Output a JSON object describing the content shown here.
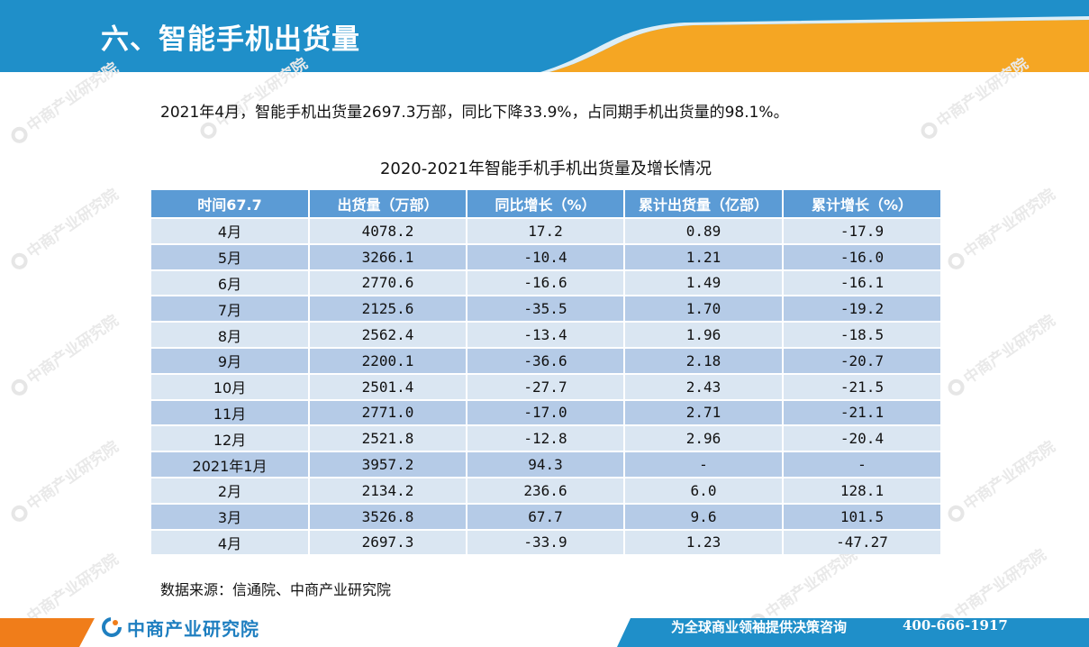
{
  "header": {
    "title": "六、智能手机出货量"
  },
  "summary": "2021年4月，智能手机出货量2697.3万部，同比下降33.9%，占同期手机出货量的98.1%。",
  "table": {
    "title": "2020-2021年智能手机手机出货量及增长情况",
    "headers": [
      "时间67.7",
      "出货量（万部）",
      "同比增长（%）",
      "累计出货量（亿部）",
      "累计增长（%）"
    ],
    "rows": [
      [
        "4月",
        "4078.2",
        "17.2",
        "0.89",
        "-17.9"
      ],
      [
        "5月",
        "3266.1",
        "-10.4",
        "1.21",
        "-16.0"
      ],
      [
        "6月",
        "2770.6",
        "-16.6",
        "1.49",
        "-16.1"
      ],
      [
        "7月",
        "2125.6",
        "-35.5",
        "1.70",
        "-19.2"
      ],
      [
        "8月",
        "2562.4",
        "-13.4",
        "1.96",
        "-18.5"
      ],
      [
        "9月",
        "2200.1",
        "-36.6",
        "2.18",
        "-20.7"
      ],
      [
        "10月",
        "2501.4",
        "-27.7",
        "2.43",
        "-21.5"
      ],
      [
        "11月",
        "2771.0",
        "-17.0",
        "2.71",
        "-21.1"
      ],
      [
        "12月",
        "2521.8",
        "-12.8",
        "2.96",
        "-20.4"
      ],
      [
        "2021年1月",
        "3957.2",
        "94.3",
        "-",
        "-"
      ],
      [
        "2月",
        "2134.2",
        "236.6",
        "6.0",
        "128.1"
      ],
      [
        "3月",
        "3526.8",
        "67.7",
        "9.6",
        "101.5"
      ],
      [
        "4月",
        "2697.3",
        "-33.9",
        "1.23",
        "-47.27"
      ]
    ]
  },
  "source": "数据来源：信通院、中商产业研究院",
  "footer": {
    "logo_text": "中商产业研究院",
    "slogan": "为全球商业领袖提供决策咨询",
    "phone": "400-666-1917"
  },
  "watermark": {
    "text": "中商产业研究院"
  },
  "colors": {
    "header_blue": "#1f8fc9",
    "header_orange": "#f5a623",
    "table_header": "#5b9bd5",
    "row_light": "#dae6f2",
    "row_dark": "#b5cbe7",
    "footer_orange": "#f07d1a",
    "footer_blue": "#1f8fc9"
  }
}
